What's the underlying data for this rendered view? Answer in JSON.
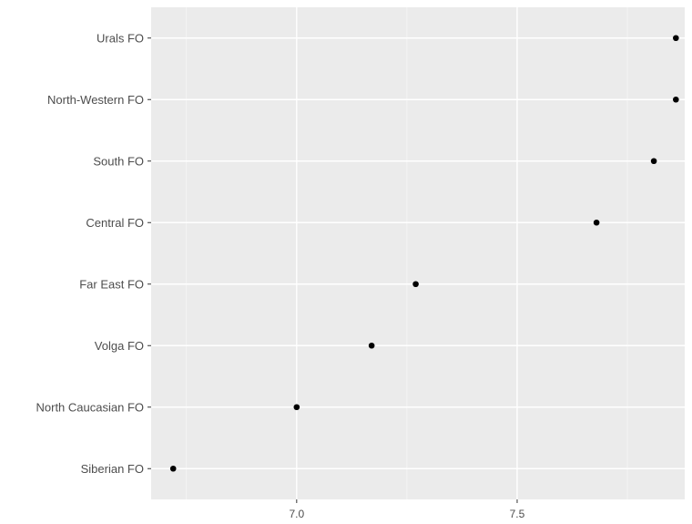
{
  "chart_data": {
    "type": "scatter",
    "title": "",
    "xlabel": "",
    "ylabel": "",
    "categories": [
      "Siberian FO",
      "North Caucasian FO",
      "Volga FO",
      "Far East FO",
      "Central FO",
      "South FO",
      "North-Western FO",
      "Urals FO"
    ],
    "values": [
      6.72,
      7.0,
      7.17,
      7.27,
      7.68,
      7.81,
      7.86,
      7.86
    ],
    "xlim": [
      6.67,
      7.88
    ],
    "xticks": [
      7.0,
      7.5
    ],
    "xtick_labels": [
      "7.0",
      "7.5"
    ],
    "grid": true,
    "legend": "none",
    "colors": {
      "panel_background": "#ebebeb",
      "grid_major": "#ffffff",
      "grid_minor": "#f5f5f5",
      "point": "#000000",
      "axis_text": "#4d4d4d",
      "tick": "#333333"
    }
  }
}
